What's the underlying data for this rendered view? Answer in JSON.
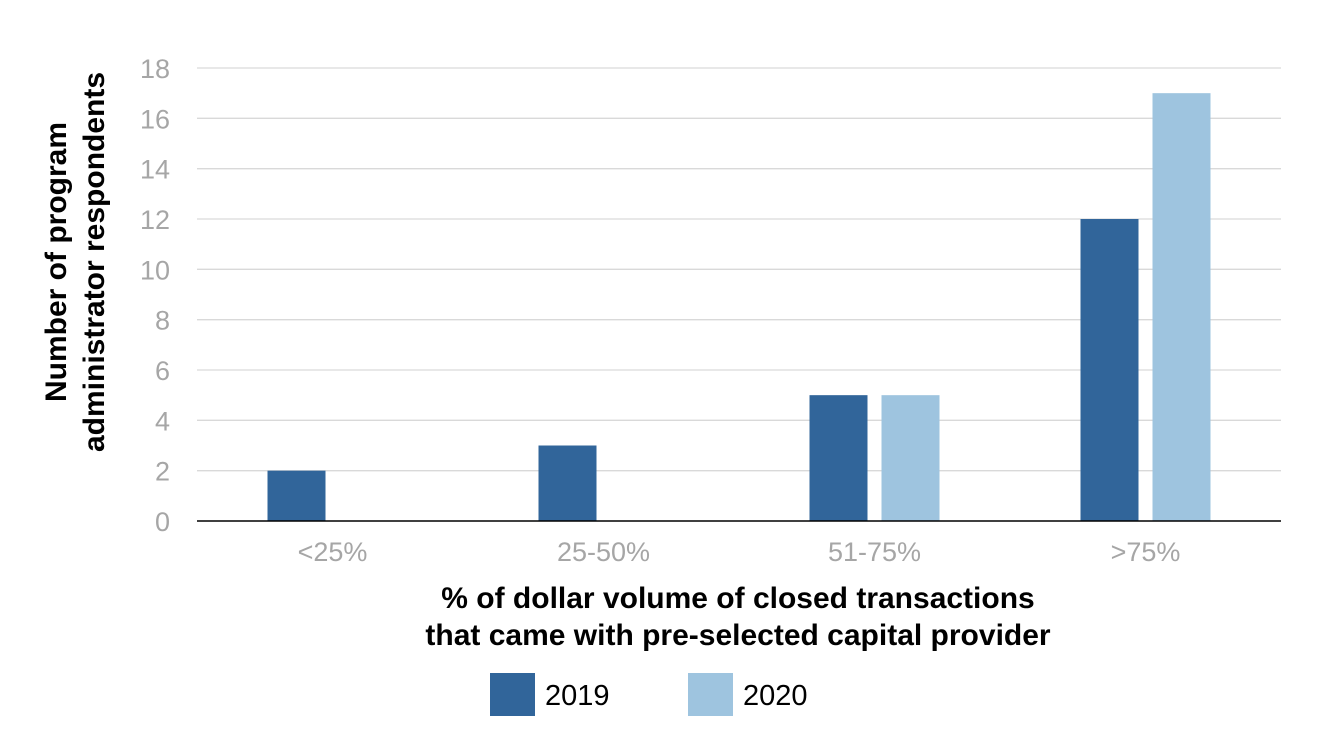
{
  "chart_data": {
    "type": "bar",
    "categories": [
      "<25%",
      "25-50%",
      "51-75%",
      ">75%"
    ],
    "series": [
      {
        "name": "2019",
        "color": "#31659a",
        "values": [
          2,
          3,
          5,
          12
        ]
      },
      {
        "name": "2020",
        "color": "#9ec4df",
        "values": [
          0,
          0,
          5,
          17
        ]
      }
    ],
    "title": "",
    "xlabel": [
      "% of dollar volume of closed transactions",
      "that came with pre-selected capital provider"
    ],
    "ylabel": [
      "Number of program",
      "administrator respondents"
    ],
    "ylim": [
      0,
      18
    ],
    "yticks": [
      "0",
      "2",
      "4",
      "6",
      "8",
      "10",
      "12",
      "14",
      "16",
      "18"
    ],
    "grid": true,
    "legend_position": "bottom"
  }
}
